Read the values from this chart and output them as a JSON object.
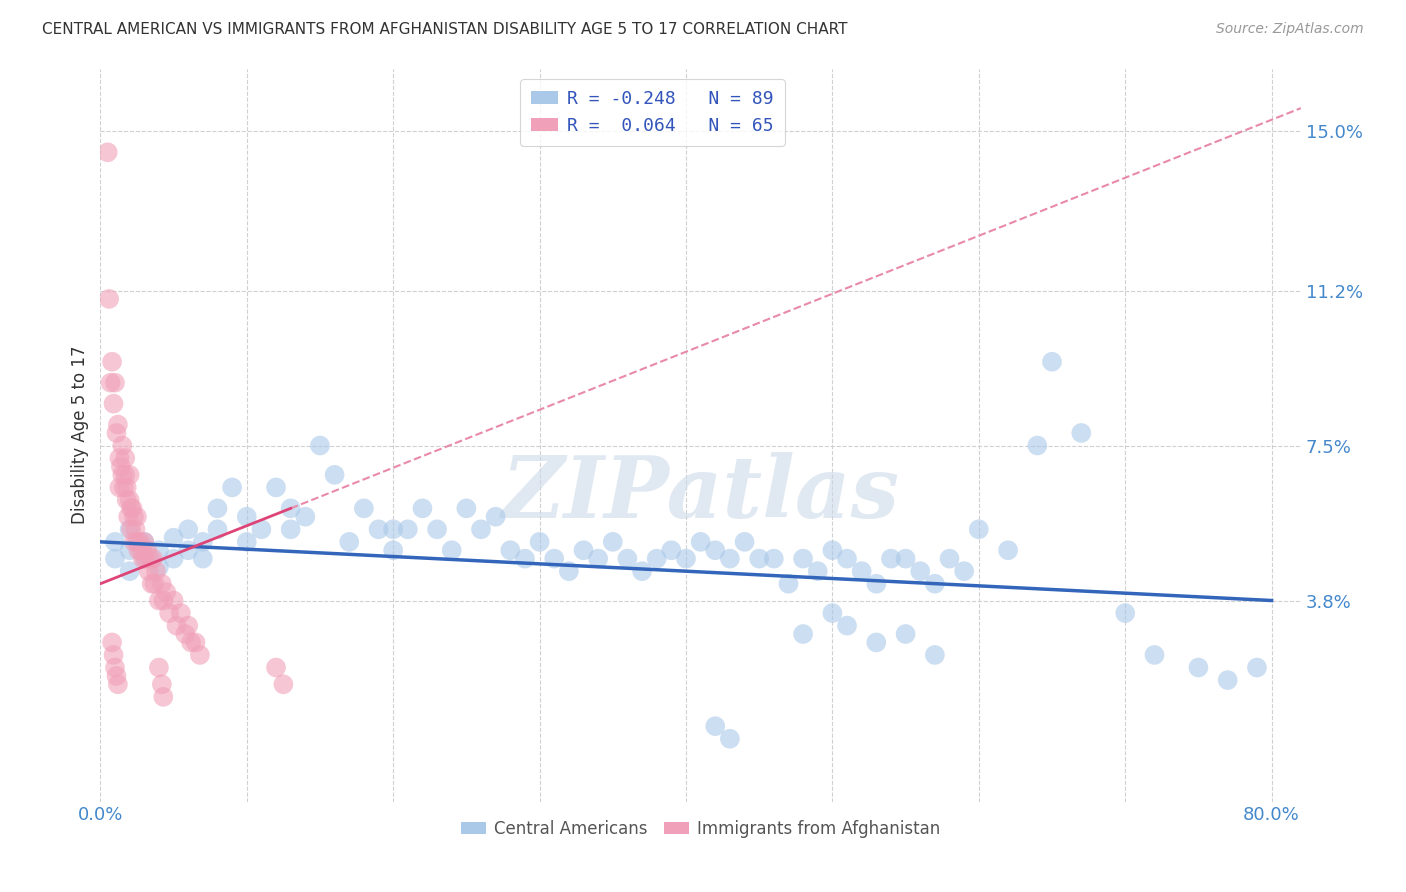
{
  "title": "CENTRAL AMERICAN VS IMMIGRANTS FROM AFGHANISTAN DISABILITY AGE 5 TO 17 CORRELATION CHART",
  "source": "Source: ZipAtlas.com",
  "ylabel": "Disability Age 5 to 17",
  "watermark": "ZIPatlas",
  "xlim": [
    0.0,
    0.82
  ],
  "ylim": [
    -0.01,
    0.165
  ],
  "yticks": [
    0.038,
    0.075,
    0.112,
    0.15
  ],
  "ytick_labels": [
    "3.8%",
    "7.5%",
    "11.2%",
    "15.0%"
  ],
  "xticks": [
    0.0,
    0.1,
    0.2,
    0.3,
    0.4,
    0.5,
    0.6,
    0.7,
    0.8
  ],
  "blue_R": -0.248,
  "blue_N": 89,
  "pink_R": 0.064,
  "pink_N": 65,
  "blue_color": "#aac8e8",
  "blue_line_color": "#3366bb",
  "pink_color": "#f0a0b8",
  "pink_line_color": "#dd4477",
  "pink_dash_color": "#e88aa8",
  "grid_color": "#d0d0d0",
  "axis_label_color": "#4488cc",
  "title_color": "#333333",
  "legend_label_color": "#3355bb",
  "blue_scatter_x": [
    0.01,
    0.01,
    0.02,
    0.02,
    0.02,
    0.03,
    0.03,
    0.04,
    0.04,
    0.05,
    0.05,
    0.06,
    0.06,
    0.07,
    0.07,
    0.08,
    0.08,
    0.09,
    0.1,
    0.1,
    0.11,
    0.12,
    0.13,
    0.13,
    0.14,
    0.15,
    0.16,
    0.17,
    0.18,
    0.19,
    0.2,
    0.2,
    0.21,
    0.22,
    0.23,
    0.24,
    0.25,
    0.26,
    0.27,
    0.28,
    0.29,
    0.3,
    0.31,
    0.32,
    0.33,
    0.34,
    0.35,
    0.36,
    0.37,
    0.38,
    0.39,
    0.4,
    0.41,
    0.42,
    0.43,
    0.44,
    0.45,
    0.46,
    0.47,
    0.48,
    0.49,
    0.5,
    0.51,
    0.52,
    0.53,
    0.54,
    0.55,
    0.56,
    0.57,
    0.58,
    0.59,
    0.6,
    0.62,
    0.64,
    0.65,
    0.67,
    0.7,
    0.72,
    0.75,
    0.77,
    0.79,
    0.5,
    0.48,
    0.51,
    0.53,
    0.55,
    0.57,
    0.42,
    0.43
  ],
  "blue_scatter_y": [
    0.052,
    0.048,
    0.045,
    0.05,
    0.055,
    0.048,
    0.052,
    0.05,
    0.046,
    0.053,
    0.048,
    0.055,
    0.05,
    0.052,
    0.048,
    0.06,
    0.055,
    0.065,
    0.058,
    0.052,
    0.055,
    0.065,
    0.055,
    0.06,
    0.058,
    0.075,
    0.068,
    0.052,
    0.06,
    0.055,
    0.05,
    0.055,
    0.055,
    0.06,
    0.055,
    0.05,
    0.06,
    0.055,
    0.058,
    0.05,
    0.048,
    0.052,
    0.048,
    0.045,
    0.05,
    0.048,
    0.052,
    0.048,
    0.045,
    0.048,
    0.05,
    0.048,
    0.052,
    0.05,
    0.048,
    0.052,
    0.048,
    0.048,
    0.042,
    0.048,
    0.045,
    0.05,
    0.048,
    0.045,
    0.042,
    0.048,
    0.048,
    0.045,
    0.042,
    0.048,
    0.045,
    0.055,
    0.05,
    0.075,
    0.095,
    0.078,
    0.035,
    0.025,
    0.022,
    0.019,
    0.022,
    0.035,
    0.03,
    0.032,
    0.028,
    0.03,
    0.025,
    0.008,
    0.005
  ],
  "pink_scatter_x": [
    0.005,
    0.006,
    0.007,
    0.008,
    0.009,
    0.01,
    0.011,
    0.012,
    0.013,
    0.013,
    0.014,
    0.015,
    0.015,
    0.016,
    0.017,
    0.017,
    0.018,
    0.018,
    0.019,
    0.02,
    0.02,
    0.021,
    0.021,
    0.022,
    0.023,
    0.023,
    0.024,
    0.025,
    0.025,
    0.026,
    0.027,
    0.028,
    0.029,
    0.03,
    0.031,
    0.032,
    0.033,
    0.034,
    0.035,
    0.036,
    0.037,
    0.038,
    0.04,
    0.042,
    0.043,
    0.045,
    0.047,
    0.05,
    0.052,
    0.055,
    0.058,
    0.06,
    0.062,
    0.065,
    0.068,
    0.008,
    0.009,
    0.01,
    0.011,
    0.012,
    0.04,
    0.042,
    0.043,
    0.12,
    0.125
  ],
  "pink_scatter_y": [
    0.145,
    0.11,
    0.09,
    0.095,
    0.085,
    0.09,
    0.078,
    0.08,
    0.072,
    0.065,
    0.07,
    0.068,
    0.075,
    0.065,
    0.068,
    0.072,
    0.062,
    0.065,
    0.058,
    0.062,
    0.068,
    0.06,
    0.055,
    0.06,
    0.058,
    0.052,
    0.055,
    0.052,
    0.058,
    0.05,
    0.052,
    0.05,
    0.048,
    0.052,
    0.048,
    0.05,
    0.045,
    0.048,
    0.042,
    0.048,
    0.042,
    0.045,
    0.038,
    0.042,
    0.038,
    0.04,
    0.035,
    0.038,
    0.032,
    0.035,
    0.03,
    0.032,
    0.028,
    0.028,
    0.025,
    0.028,
    0.025,
    0.022,
    0.02,
    0.018,
    0.022,
    0.018,
    0.015,
    0.022,
    0.018
  ]
}
